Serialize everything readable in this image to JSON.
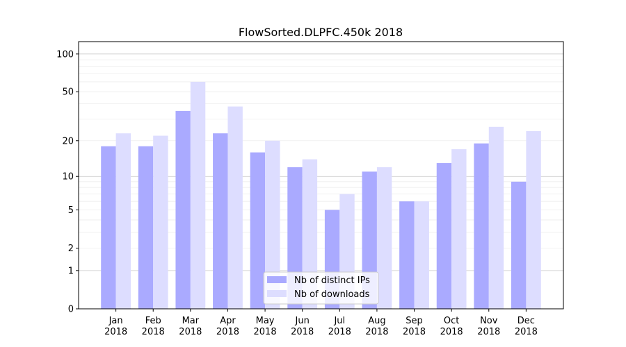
{
  "chart_data": {
    "type": "bar",
    "title": "FlowSorted.DLPFC.450k 2018",
    "xlabel": "",
    "ylabel": "",
    "yscale": "symlog (log10(1+y))",
    "ylim": [
      0,
      120
    ],
    "yticks": [
      0,
      1,
      2,
      5,
      10,
      20,
      50,
      100
    ],
    "grid": true,
    "legend_placement": "lower center",
    "categories": [
      "Jan\n2018",
      "Feb\n2018",
      "Mar\n2018",
      "Apr\n2018",
      "May\n2018",
      "Jun\n2018",
      "Jul\n2018",
      "Aug\n2018",
      "Sep\n2018",
      "Oct\n2018",
      "Nov\n2018",
      "Dec\n2018"
    ],
    "series": [
      {
        "name": "Nb of distinct IPs",
        "color": "#aaaaff",
        "values": [
          18,
          18,
          35,
          23,
          16,
          12,
          5,
          11,
          6,
          13,
          19,
          9
        ]
      },
      {
        "name": "Nb of downloads",
        "color": "#ddddff",
        "values": [
          23,
          22,
          60,
          38,
          20,
          14,
          7,
          12,
          6,
          17,
          26,
          24
        ]
      }
    ]
  }
}
